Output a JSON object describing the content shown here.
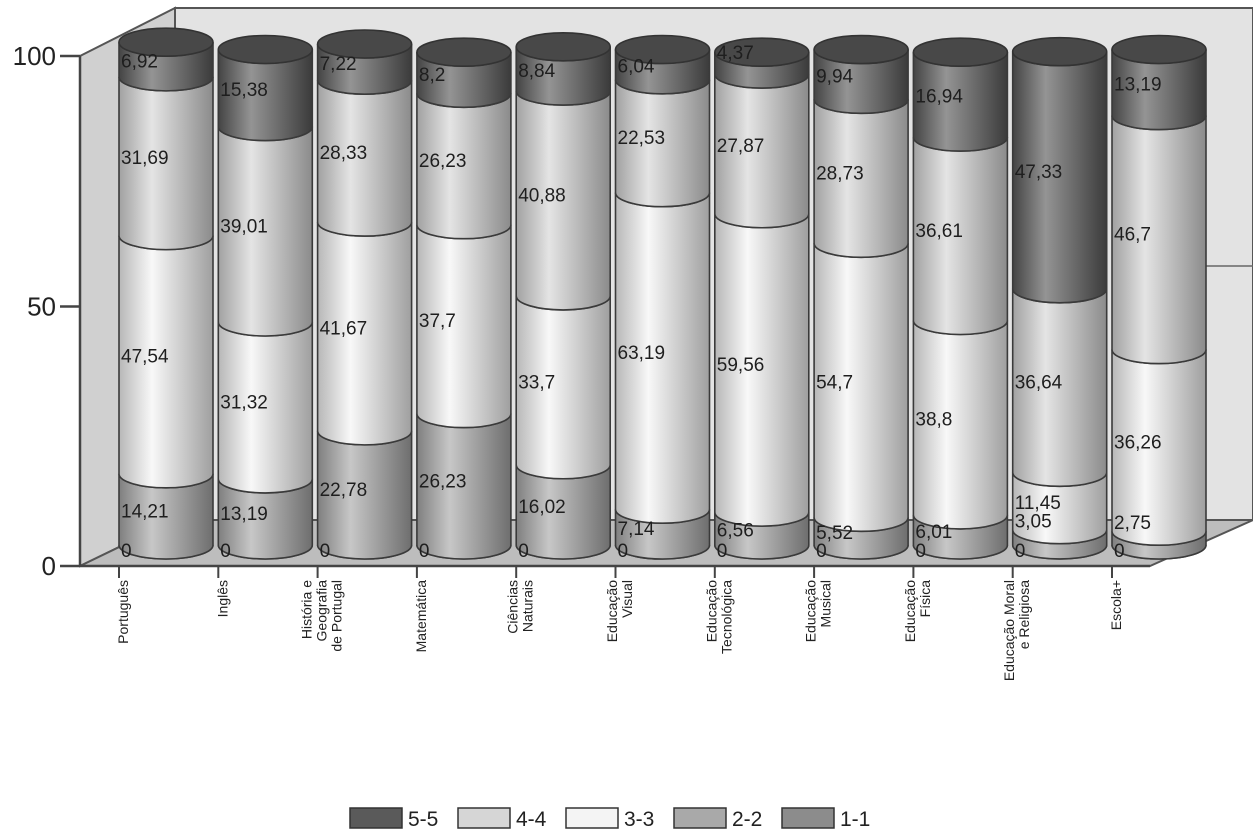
{
  "chart_data": {
    "type": "bar",
    "stacked": true,
    "style": "3d-cylinder",
    "ylim": [
      0,
      100
    ],
    "yticks": [
      "0",
      "50",
      "100"
    ],
    "grid": false,
    "legend_position": "bottom-center",
    "categories": [
      "Português",
      "Inglês",
      "História e Geografia de Portugal",
      "Matemática",
      "Ciências Naturais",
      "Educação Visual",
      "Educação Tecnológica",
      "Educação Musical",
      "Educação Física",
      "Educação Moral e Religiosa",
      "Escola+"
    ],
    "category_lines": [
      [
        "Português"
      ],
      [
        "Inglês"
      ],
      [
        "História e",
        "Geografia",
        "de Portugal"
      ],
      [
        "Matemática"
      ],
      [
        "Ciências",
        "Naturais"
      ],
      [
        "Educação",
        "Visual"
      ],
      [
        "Educação",
        "Tecnológica"
      ],
      [
        "Educação",
        "Musical"
      ],
      [
        "Educação",
        "Física"
      ],
      [
        "Educação Moral",
        "e Religiosa"
      ],
      [
        "Escola+"
      ]
    ],
    "series": [
      {
        "name": "1-1",
        "color": "#8c8c8c",
        "values": [
          0,
          0,
          0,
          0,
          0,
          0,
          0,
          0,
          0,
          0,
          0
        ],
        "labels": [
          "0",
          "0",
          "0",
          "0",
          "0",
          "0",
          "0",
          "0",
          "0",
          "0",
          "0"
        ]
      },
      {
        "name": "2-2",
        "color": "#a9a9a9",
        "values": [
          14.21,
          13.19,
          22.78,
          26.23,
          16.02,
          7.14,
          6.56,
          5.52,
          6.01,
          3.05,
          2.75
        ],
        "labels": [
          "14,21",
          "13,19",
          "22,78",
          "26,23",
          "16,02",
          "7,14",
          "6,56",
          "5,52",
          "6,01",
          "3,05",
          "2,75"
        ]
      },
      {
        "name": "3-3",
        "color": "#f4f4f4",
        "values": [
          47.54,
          31.32,
          41.67,
          37.7,
          33.7,
          63.19,
          59.56,
          54.7,
          38.8,
          11.45,
          36.26
        ],
        "labels": [
          "47,54",
          "31,32",
          "41,67",
          "37,7",
          "33,7",
          "63,19",
          "59,56",
          "54,7",
          "38,8",
          "11,45",
          "36,26"
        ]
      },
      {
        "name": "4-4",
        "color": "#d6d6d6",
        "values": [
          31.69,
          39.01,
          28.33,
          26.23,
          40.88,
          22.53,
          27.87,
          28.73,
          36.61,
          36.64,
          46.7
        ],
        "labels": [
          "31,69",
          "39,01",
          "28,33",
          "26,23",
          "40,88",
          "22,53",
          "27,87",
          "28,73",
          "36,61",
          "36,64",
          "46,7"
        ]
      },
      {
        "name": "5-5",
        "color": "#5a5a5a",
        "values": [
          6.92,
          15.38,
          7.22,
          8.2,
          8.84,
          6.04,
          4.37,
          9.94,
          16.94,
          47.33,
          13.19
        ],
        "labels": [
          "6,92",
          "15,38",
          "7,22",
          "8,2",
          "8,84",
          "6,04",
          "4,37",
          "9,94",
          "16,94",
          "47,33",
          "13,19"
        ]
      }
    ],
    "legend_order": [
      "5-5",
      "4-4",
      "3-3",
      "2-2",
      "1-1"
    ]
  }
}
